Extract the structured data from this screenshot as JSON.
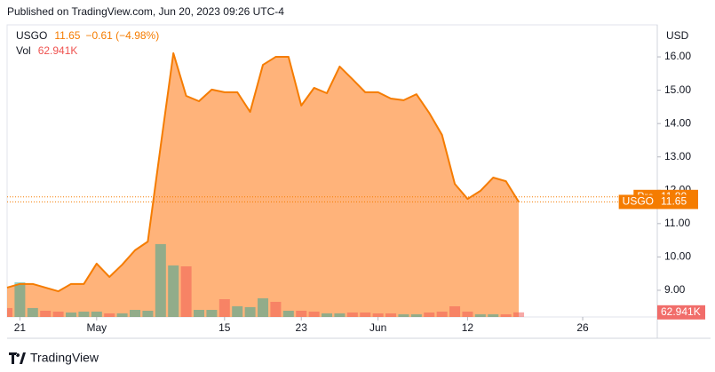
{
  "header": "Published on TradingView.com, Jun 20, 2023 09:26 UTC-4",
  "footer": "TradingView",
  "chart_data": {
    "type": "area",
    "currency": "USD",
    "legend_change": "−0.61 (−4.98%)",
    "x": [
      0,
      1,
      2,
      3,
      4,
      5,
      6,
      7,
      8,
      9,
      10,
      11,
      12,
      13,
      14,
      15,
      16,
      17,
      18,
      19,
      20,
      21,
      22,
      23,
      24,
      25,
      26,
      27,
      28,
      29,
      30,
      31,
      32,
      33,
      34,
      35,
      36,
      37,
      38,
      39,
      40
    ],
    "xlim": [
      0,
      50.83
    ],
    "xticks": [
      {
        "value": 1,
        "label": "21"
      },
      {
        "value": 7,
        "label": "May"
      },
      {
        "value": 17,
        "label": "15"
      },
      {
        "value": 23,
        "label": "23"
      },
      {
        "value": 29,
        "label": "Jun"
      },
      {
        "value": 36,
        "label": "12"
      },
      {
        "value": 45,
        "label": "26"
      }
    ],
    "ylim": [
      8.2,
      16.96
    ],
    "yticks": [
      {
        "value": 9,
        "label": "9.00"
      },
      {
        "value": 10,
        "label": "10.00"
      },
      {
        "value": 11,
        "label": "11.00"
      },
      {
        "value": 12,
        "label": "12.00"
      },
      {
        "value": 13,
        "label": "13.00"
      },
      {
        "value": 14,
        "label": "14.00"
      },
      {
        "value": 15,
        "label": "15.00"
      },
      {
        "value": 16,
        "label": "16.00"
      }
    ],
    "series": [
      {
        "name": "USGO",
        "color": "#f57c00",
        "fill": "#ff9a4d",
        "values": [
          9.08,
          9.19,
          9.19,
          9.08,
          8.97,
          9.19,
          9.19,
          9.8,
          9.4,
          9.77,
          10.2,
          10.46,
          13.31,
          16.11,
          14.83,
          14.67,
          15.02,
          14.94,
          14.94,
          14.35,
          15.76,
          16.0,
          16.0,
          14.54,
          15.07,
          14.91,
          15.71,
          15.33,
          14.94,
          14.94,
          14.75,
          14.7,
          14.88,
          14.32,
          13.66,
          12.19,
          11.74,
          11.98,
          12.38,
          12.27,
          11.65
        ]
      },
      {
        "name": "Vol",
        "color": "#ef5350",
        "vlim": [
          0,
          4000000
        ],
        "colors": [
          "#ef5350",
          "#26a69a",
          "#26a69a",
          "#ef5350",
          "#ef5350",
          "#26a69a",
          "#26a69a",
          "#26a69a",
          "#ef5350",
          "#26a69a",
          "#26a69a",
          "#26a69a",
          "#26a69a",
          "#26a69a",
          "#ef5350",
          "#26a69a",
          "#26a69a",
          "#ef5350",
          "#26a69a",
          "#26a69a",
          "#26a69a",
          "#ef5350",
          "#26a69a",
          "#ef5350",
          "#ef5350",
          "#26a69a",
          "#26a69a",
          "#ef5350",
          "#ef5350",
          "#ef5350",
          "#ef5350",
          "#26a69a",
          "#26a69a",
          "#ef5350",
          "#ef5350",
          "#ef5350",
          "#ef5350",
          "#26a69a",
          "#26a69a",
          "#ef5350",
          "#ef5350"
        ],
        "values": [
          122000,
          474000,
          122000,
          85000,
          73000,
          61000,
          73000,
          73000,
          49000,
          49000,
          97000,
          85000,
          997000,
          705000,
          693000,
          97000,
          97000,
          243000,
          146000,
          134000,
          255000,
          207000,
          85000,
          85000,
          73000,
          49000,
          49000,
          61000,
          61000,
          49000,
          49000,
          36000,
          36000,
          61000,
          73000,
          146000,
          73000,
          36000,
          36000,
          36000,
          62941
        ]
      }
    ],
    "last_price": {
      "name": "USGO",
      "value": 11.65
    },
    "pre_price": {
      "name": "Pre",
      "value": 11.8,
      "label": "11.80"
    },
    "last_volume": {
      "value": 62941,
      "label": "62.941K"
    }
  }
}
